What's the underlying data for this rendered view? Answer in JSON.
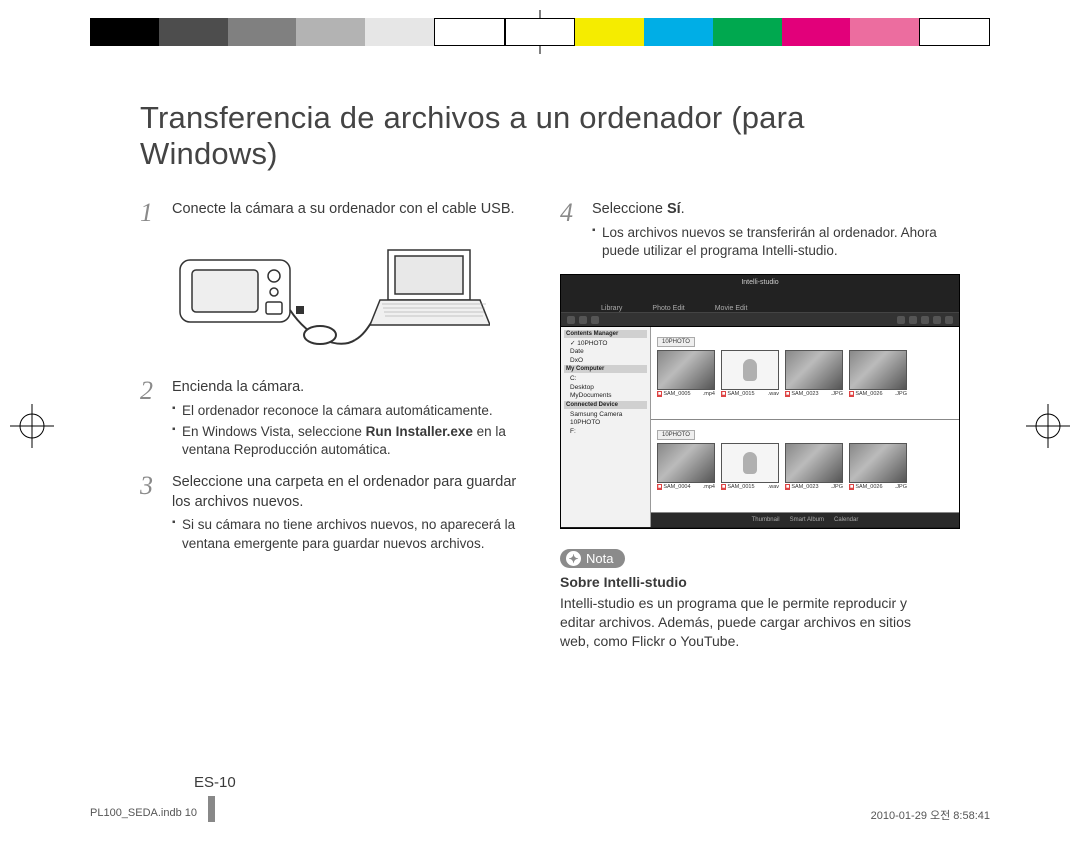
{
  "colorBar": [
    "#000000",
    "#4d4d4d",
    "#808080",
    "#b3b3b3",
    "#e6e6e6",
    "#ffffff",
    "#ffffff",
    "#f5ec00",
    "#00aee6",
    "#00a84f",
    "#e2007a",
    "#ec6d9f",
    "#ffffff"
  ],
  "title": "Transferencia de archivos a un ordenador (para Windows)",
  "left": {
    "s1": {
      "num": "1",
      "text": "Conecte la cámara a su ordenador con el cable USB."
    },
    "s2": {
      "num": "2",
      "text": "Encienda la cámara.",
      "subs": [
        "El ordenador reconoce la cámara automáticamente.",
        "En Windows Vista, seleccione Run Installer.exe en la ventana Reproducción automática."
      ],
      "bold2": "Run Installer.exe"
    },
    "s3": {
      "num": "3",
      "text": "Seleccione una carpeta en el ordenador para guardar los archivos nuevos.",
      "subs": [
        "Si su cámara no tiene archivos nuevos, no aparecerá la ventana emergente para guardar nuevos archivos."
      ]
    }
  },
  "right": {
    "s4": {
      "num": "4",
      "text_pre": "Seleccione ",
      "text_bold": "Sí",
      "text_post": ".",
      "subs": [
        "Los archivos nuevos se transferirán al ordenador. Ahora puede utilizar el programa Intelli-studio."
      ]
    },
    "screenshot": {
      "appTitle": "Intelli-studio",
      "tabs": [
        "Library",
        "Photo Edit",
        "Movie Edit"
      ],
      "side": {
        "h1": "Contents Manager",
        "lines1": [
          "✓ 10PHOTO",
          "Date",
          "DxO"
        ],
        "h2": "My Computer",
        "lines2": [
          "C:",
          "Desktop",
          "MyDocuments"
        ],
        "h3": "Connected Device",
        "lines3": [
          "Samsung Camera",
          "10PHOTO",
          "F:"
        ]
      },
      "panelTab": "10PHOTO",
      "thumbsTop": [
        {
          "cap": "SAM_0005",
          "ext": ".mp4",
          "mic": false
        },
        {
          "cap": "SAM_0015",
          "ext": ".wav",
          "mic": true
        },
        {
          "cap": "SAM_0023",
          "ext": ".JPG",
          "mic": false
        },
        {
          "cap": "SAM_0026",
          "ext": ".JPG",
          "mic": false
        }
      ],
      "thumbsBot": [
        {
          "cap": "SAM_0004",
          "ext": ".mp4",
          "mic": false
        },
        {
          "cap": "SAM_0015",
          "ext": ".wav",
          "mic": true
        },
        {
          "cap": "SAM_0023",
          "ext": ".JPG",
          "mic": false
        },
        {
          "cap": "SAM_0026",
          "ext": ".JPG",
          "mic": false
        }
      ],
      "footer": [
        "Thumbnail",
        "Smart Album",
        "Calendar"
      ]
    },
    "nota": {
      "badge": "Nota",
      "subtitle": "Sobre Intelli-studio",
      "text": "Intelli-studio es un programa que le permite reproducir y editar archivos. Además, puede cargar archivos en sitios web, como Flickr o YouTube."
    }
  },
  "pageNum": "ES-10",
  "footerLeft": "PL100_SEDA.indb   10",
  "footerRight": "2010-01-29   오전 8:58:41"
}
